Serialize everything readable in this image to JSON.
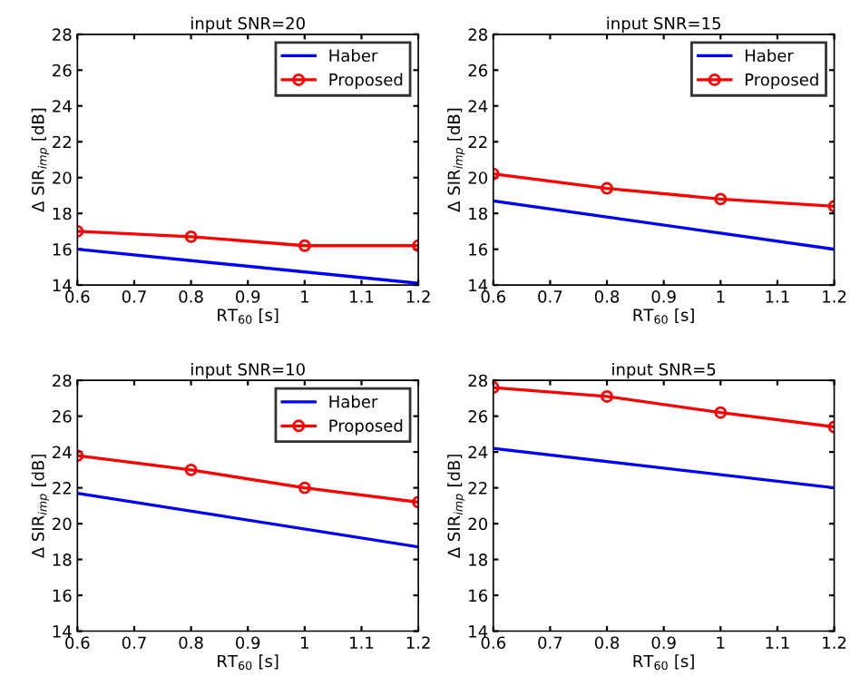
{
  "chart_data": [
    {
      "type": "line",
      "title": "input SNR=20",
      "xlabel": "RT$_{60}$ [s]",
      "ylabel": "Δ SIR$_{imp}$ [dB]",
      "xlim": [
        0.6,
        1.2
      ],
      "ylim": [
        14,
        28
      ],
      "xticks": [
        0.6,
        0.7,
        0.8,
        0.9,
        1,
        1.1,
        1.2
      ],
      "yticks": [
        14,
        16,
        18,
        20,
        22,
        24,
        26,
        28
      ],
      "legend": "top right",
      "grid": false,
      "series": [
        {
          "name": "Haber",
          "color": "#0000ff",
          "x": [
            0.6,
            1.2
          ],
          "values": [
            16.0,
            14.1
          ],
          "marker": "none"
        },
        {
          "name": "Proposed",
          "color": "#ff0000",
          "x": [
            0.6,
            0.8,
            1.0,
            1.2
          ],
          "values": [
            17.0,
            16.7,
            16.2,
            16.2
          ],
          "marker": "circle"
        }
      ]
    },
    {
      "type": "line",
      "title": "input SNR=15",
      "xlabel": "RT$_{60}$ [s]",
      "ylabel": "Δ SIR$_{imp}$ [dB]",
      "xlim": [
        0.6,
        1.2
      ],
      "ylim": [
        14,
        28
      ],
      "xticks": [
        0.6,
        0.7,
        0.8,
        0.9,
        1,
        1.1,
        1.2
      ],
      "yticks": [
        14,
        16,
        18,
        20,
        22,
        24,
        26,
        28
      ],
      "legend": "top right",
      "grid": false,
      "series": [
        {
          "name": "Haber",
          "color": "#0000ff",
          "x": [
            0.6,
            1.2
          ],
          "values": [
            18.7,
            16.0
          ],
          "marker": "none"
        },
        {
          "name": "Proposed",
          "color": "#ff0000",
          "x": [
            0.6,
            0.8,
            1.0,
            1.2
          ],
          "values": [
            20.2,
            19.4,
            18.8,
            18.4
          ],
          "marker": "circle"
        }
      ]
    },
    {
      "type": "line",
      "title": "input SNR=10",
      "xlabel": "RT$_{60}$ [s]",
      "ylabel": "Δ SIR$_{imp}$ [dB]",
      "xlim": [
        0.6,
        1.2
      ],
      "ylim": [
        14,
        28
      ],
      "xticks": [
        0.6,
        0.7,
        0.8,
        0.9,
        1,
        1.1,
        1.2
      ],
      "yticks": [
        14,
        16,
        18,
        20,
        22,
        24,
        26,
        28
      ],
      "legend": "top right",
      "grid": false,
      "series": [
        {
          "name": "Haber",
          "color": "#0000ff",
          "x": [
            0.6,
            1.2
          ],
          "values": [
            21.7,
            18.7
          ],
          "marker": "none"
        },
        {
          "name": "Proposed",
          "color": "#ff0000",
          "x": [
            0.6,
            0.8,
            1.0,
            1.2
          ],
          "values": [
            23.8,
            23.0,
            22.0,
            21.2
          ],
          "marker": "circle"
        }
      ]
    },
    {
      "type": "line",
      "title": "input SNR=5",
      "xlabel": "RT$_{60}$ [s]",
      "ylabel": "Δ SIR$_{imp}$ [dB]",
      "xlim": [
        0.6,
        1.2
      ],
      "ylim": [
        14,
        28
      ],
      "xticks": [
        0.6,
        0.7,
        0.8,
        0.9,
        1,
        1.1,
        1.2
      ],
      "yticks": [
        14,
        16,
        18,
        20,
        22,
        24,
        26,
        28
      ],
      "legend": false,
      "grid": false,
      "series": [
        {
          "color": "#0000ff",
          "x": [
            0.6,
            1.2
          ],
          "values": [
            24.2,
            22.0
          ],
          "marker": "none"
        },
        {
          "color": "#ff0000",
          "x": [
            0.6,
            0.8,
            1.0,
            1.2
          ],
          "values": [
            27.6,
            27.1,
            26.2,
            25.4
          ],
          "marker": "circle"
        }
      ]
    }
  ]
}
